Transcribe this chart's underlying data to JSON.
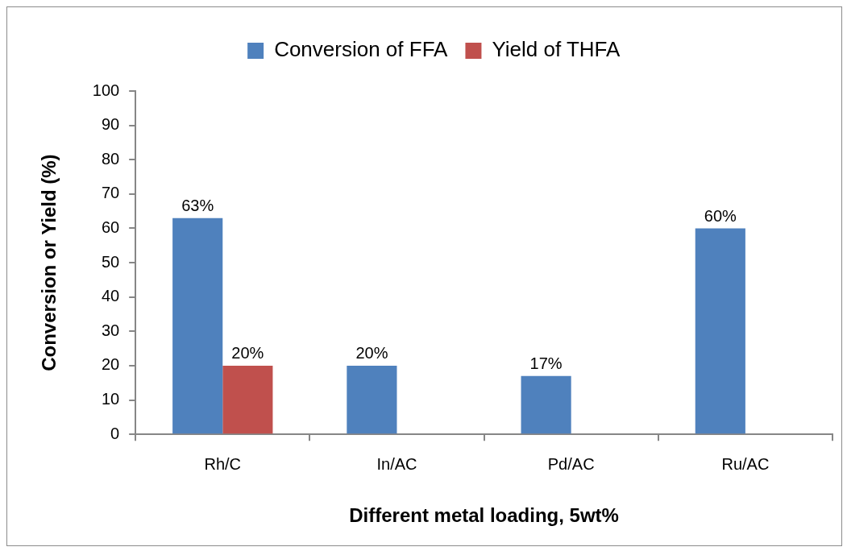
{
  "chart_data": {
    "type": "bar",
    "xlabel": "Different metal loading, 5wt%",
    "ylabel": "Conversion or Yield (%)",
    "categories": [
      "Rh/C",
      "In/AC",
      "Pd/AC",
      "Ru/AC"
    ],
    "series": [
      {
        "name": "Conversion of FFA",
        "color": "#4f81bd",
        "values": [
          63,
          20,
          17,
          60
        ],
        "value_labels": [
          "63%",
          "20%",
          "17%",
          "60%"
        ]
      },
      {
        "name": "Yield of THFA",
        "color": "#c0504d",
        "values": [
          20,
          null,
          null,
          null
        ],
        "value_labels": [
          "20%",
          null,
          null,
          null
        ]
      }
    ],
    "ylim": [
      0,
      100
    ],
    "yticks": [
      0,
      10,
      20,
      30,
      40,
      50,
      60,
      70,
      80,
      90,
      100
    ],
    "grid": false,
    "legend": "top"
  }
}
